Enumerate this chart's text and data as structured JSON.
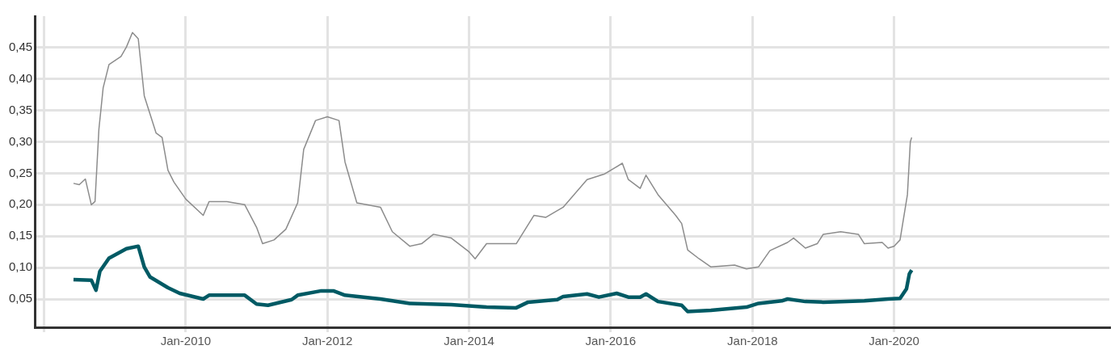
{
  "chart_data": {
    "type": "line",
    "xlim": [
      "2007-11-15",
      "2023-01-15"
    ],
    "ylim": [
      0.005,
      0.5
    ],
    "xticks": [
      {
        "value": "2008-01",
        "label": null
      },
      {
        "value": "2010-01",
        "label": "Jan-2010"
      },
      {
        "value": "2012-01",
        "label": "Jan-2012"
      },
      {
        "value": "2014-01",
        "label": "Jan-2014"
      },
      {
        "value": "2016-01",
        "label": "Jan-2016"
      },
      {
        "value": "2018-01",
        "label": "Jan-2018"
      },
      {
        "value": "2020-01",
        "label": "Jan-2020"
      }
    ],
    "yticks": [
      {
        "value": 0.05,
        "label": "0,05"
      },
      {
        "value": 0.1,
        "label": "0,10"
      },
      {
        "value": 0.15,
        "label": "0,15"
      },
      {
        "value": 0.2,
        "label": "0,20"
      },
      {
        "value": 0.25,
        "label": "0,25"
      },
      {
        "value": 0.3,
        "label": "0,30"
      },
      {
        "value": 0.35,
        "label": "0,35"
      },
      {
        "value": 0.4,
        "label": "0,40"
      },
      {
        "value": 0.45,
        "label": "0,45"
      }
    ],
    "grid": true,
    "legend": false,
    "marker": "none",
    "line_style": "solid",
    "series": [
      {
        "color": "#8c8c8c",
        "x": [
          "2008-06",
          "2008-07",
          "2008-08",
          "2008-09-01",
          "2008-09-20",
          "2008-10-10",
          "2008-11",
          "2008-12",
          "2009-02",
          "2009-03",
          "2009-04",
          "2009-05",
          "2009-06",
          "2009-08",
          "2009-09",
          "2009-10",
          "2009-11",
          "2010-01",
          "2010-04",
          "2010-05",
          "2010-08",
          "2010-11",
          "2011-01",
          "2011-02",
          "2011-04",
          "2011-06",
          "2011-08",
          "2011-09",
          "2011-11",
          "2012-01",
          "2012-03",
          "2012-04",
          "2012-06",
          "2012-10",
          "2012-12",
          "2013-03",
          "2013-05",
          "2013-07",
          "2013-10",
          "2014-01",
          "2014-02",
          "2014-04",
          "2014-09",
          "2014-12",
          "2015-02",
          "2015-05",
          "2015-09",
          "2015-12",
          "2016-03",
          "2016-04",
          "2016-06",
          "2016-07",
          "2016-09",
          "2016-12",
          "2017-01",
          "2017-02",
          "2017-04",
          "2017-06",
          "2017-10",
          "2017-12",
          "2018-02",
          "2018-04",
          "2018-07",
          "2018-08",
          "2018-10",
          "2018-12",
          "2019-01",
          "2019-04",
          "2019-07",
          "2019-08",
          "2019-11",
          "2019-12",
          "2020-01",
          "2020-02",
          "2020-03-10",
          "2020-03-25",
          "2020-04-01"
        ],
        "values": [
          0.234,
          0.232,
          0.241,
          0.2,
          0.205,
          0.32,
          0.386,
          0.423,
          0.436,
          0.451,
          0.474,
          0.464,
          0.373,
          0.314,
          0.307,
          0.255,
          0.236,
          0.209,
          0.183,
          0.205,
          0.205,
          0.2,
          0.164,
          0.138,
          0.144,
          0.161,
          0.203,
          0.288,
          0.334,
          0.34,
          0.334,
          0.268,
          0.203,
          0.196,
          0.157,
          0.134,
          0.138,
          0.153,
          0.147,
          0.125,
          0.114,
          0.138,
          0.138,
          0.183,
          0.18,
          0.196,
          0.24,
          0.249,
          0.266,
          0.24,
          0.226,
          0.247,
          0.216,
          0.183,
          0.17,
          0.128,
          0.114,
          0.101,
          0.104,
          0.098,
          0.101,
          0.127,
          0.14,
          0.147,
          0.131,
          0.138,
          0.153,
          0.157,
          0.153,
          0.138,
          0.14,
          0.131,
          0.134,
          0.144,
          0.216,
          0.3,
          0.307
        ]
      },
      {
        "color": "#005a64",
        "x": [
          "2008-06",
          "2008-09",
          "2008-09-25",
          "2008-10-15",
          "2008-12",
          "2009-03",
          "2009-05",
          "2009-06",
          "2009-07",
          "2009-10",
          "2009-12",
          "2010-04",
          "2010-05",
          "2010-11",
          "2011-01",
          "2011-03",
          "2011-07",
          "2011-08",
          "2011-12",
          "2012-02",
          "2012-04",
          "2012-10",
          "2013-03",
          "2013-10",
          "2014-04",
          "2014-09",
          "2014-11",
          "2015-04",
          "2015-05",
          "2015-09",
          "2015-11",
          "2016-02",
          "2016-04",
          "2016-06",
          "2016-07",
          "2016-09",
          "2017-01",
          "2017-02",
          "2017-06",
          "2017-12",
          "2018-02",
          "2018-06",
          "2018-07",
          "2018-10",
          "2019-01",
          "2019-08",
          "2019-12",
          "2020-02",
          "2020-03-05",
          "2020-03-20",
          "2020-04-01"
        ],
        "values": [
          0.081,
          0.08,
          0.064,
          0.094,
          0.115,
          0.13,
          0.134,
          0.101,
          0.085,
          0.068,
          0.059,
          0.05,
          0.056,
          0.056,
          0.042,
          0.04,
          0.049,
          0.056,
          0.063,
          0.063,
          0.056,
          0.05,
          0.043,
          0.041,
          0.037,
          0.036,
          0.045,
          0.049,
          0.054,
          0.058,
          0.053,
          0.059,
          0.053,
          0.053,
          0.058,
          0.046,
          0.04,
          0.03,
          0.032,
          0.037,
          0.043,
          0.047,
          0.05,
          0.046,
          0.045,
          0.047,
          0.05,
          0.051,
          0.066,
          0.09,
          0.096
        ]
      }
    ]
  }
}
